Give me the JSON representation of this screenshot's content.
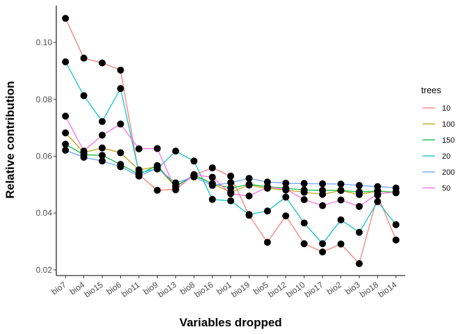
{
  "chart_data": {
    "type": "line",
    "xlabel": "Variables dropped",
    "ylabel": "Relative contribution",
    "ylim": [
      0.018,
      0.113
    ],
    "yticks": [
      0.02,
      0.04,
      0.06,
      0.08,
      0.1
    ],
    "ytick_labels": [
      "0.02",
      "0.04",
      "0.06",
      "0.08",
      "0.10"
    ],
    "grid": false,
    "legend": {
      "title": "trees",
      "position": "right"
    },
    "categories": [
      "bio7",
      "bio4",
      "bio15",
      "bio6",
      "bio11",
      "bio9",
      "bio13",
      "bio8",
      "bio16",
      "bio1",
      "bio19",
      "bio5",
      "bio12",
      "bio10",
      "bio17",
      "bio2",
      "bio3",
      "bio18",
      "bio14"
    ],
    "series": [
      {
        "name": "10",
        "color": "#F8766D",
        "values": [
          0.1085,
          0.0945,
          0.0928,
          0.0903,
          0.0535,
          0.048,
          0.0483,
          0.0534,
          0.0559,
          0.053,
          0.0392,
          0.0297,
          0.039,
          0.0292,
          0.0263,
          0.0291,
          0.0222,
          0.0463,
          0.0305
        ]
      },
      {
        "name": "100",
        "color": "#B79F00",
        "values": [
          0.0682,
          0.0613,
          0.0629,
          0.0612,
          0.0552,
          0.0563,
          0.0491,
          0.0535,
          0.0503,
          0.0473,
          0.0498,
          0.0487,
          0.0481,
          0.0473,
          0.0466,
          0.0479,
          0.0465,
          0.0478,
          0.0471
        ]
      },
      {
        "name": "150",
        "color": "#00BA38",
        "values": [
          0.0642,
          0.0605,
          0.0603,
          0.0571,
          0.0536,
          0.0567,
          0.0495,
          0.0532,
          0.0504,
          0.0488,
          0.0501,
          0.0493,
          0.0487,
          0.0481,
          0.048,
          0.048,
          0.0474,
          0.0477,
          0.0473
        ]
      },
      {
        "name": "20",
        "color": "#00BFC4",
        "values": [
          0.0932,
          0.0813,
          0.0722,
          0.0838,
          0.0542,
          0.0555,
          0.0618,
          0.0583,
          0.0448,
          0.0443,
          0.0395,
          0.0407,
          0.0456,
          0.0365,
          0.0292,
          0.0376,
          0.0332,
          0.044,
          0.0359
        ]
      },
      {
        "name": "200",
        "color": "#619CFF",
        "values": [
          0.0621,
          0.0596,
          0.0583,
          0.0563,
          0.053,
          0.0558,
          0.0506,
          0.0527,
          0.0497,
          0.0507,
          0.0522,
          0.0509,
          0.0505,
          0.0504,
          0.0503,
          0.0502,
          0.0497,
          0.0493,
          0.0488
        ]
      },
      {
        "name": "50",
        "color": "#F564E3",
        "values": [
          0.0741,
          0.0618,
          0.0674,
          0.0713,
          0.0626,
          0.0627,
          0.0482,
          0.0535,
          0.0526,
          0.0468,
          0.046,
          0.0491,
          0.0485,
          0.0447,
          0.0426,
          0.0446,
          0.0423,
          0.0468,
          0.0474
        ]
      }
    ]
  }
}
